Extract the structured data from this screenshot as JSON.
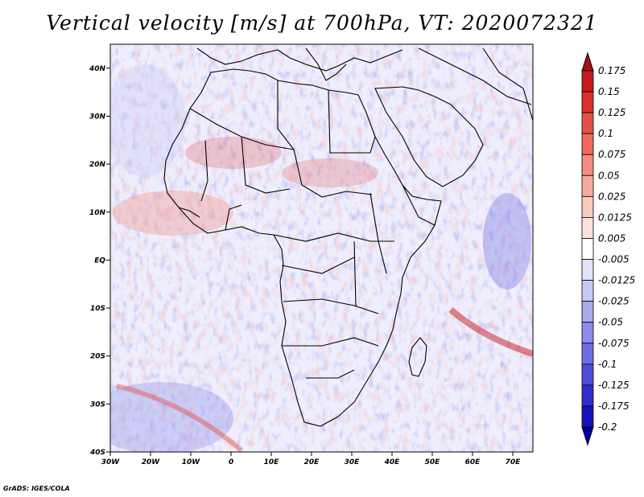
{
  "title": "Vertical velocity [m/s] at 700hPa, VT: 2020072321",
  "credit": "GrADS: IGES/COLA",
  "map": {
    "lat_labels": [
      "40N",
      "30N",
      "20N",
      "10N",
      "EQ",
      "10S",
      "20S",
      "30S",
      "40S"
    ],
    "lon_labels": [
      "30W",
      "20W",
      "10W",
      "0",
      "10E",
      "20E",
      "30E",
      "40E",
      "50E",
      "60E",
      "70E"
    ],
    "lat_range": [
      -40,
      45
    ],
    "lon_range": [
      -30,
      75
    ]
  },
  "colorbar": {
    "labels": [
      "0.175",
      "0.15",
      "0.125",
      "0.1",
      "0.075",
      "0.05",
      "0.025",
      "0.0125",
      "0.005",
      "-0.005",
      "-0.0125",
      "-0.025",
      "-0.05",
      "-0.075",
      "-0.1",
      "-0.125",
      "-0.175",
      "-0.2"
    ],
    "colors": [
      "#a50f15",
      "#c41a1f",
      "#d8312e",
      "#e34f45",
      "#ec6b5e",
      "#f28c7e",
      "#f6aa9e",
      "#f9c8bf",
      "#fbe2dc",
      "#ffffff",
      "#e2e2fb",
      "#c8c8f7",
      "#aaaaf1",
      "#8c8ceb",
      "#6e6ee3",
      "#4e4ed9",
      "#2e2ecc",
      "#1414b5",
      "#0000a0"
    ]
  }
}
